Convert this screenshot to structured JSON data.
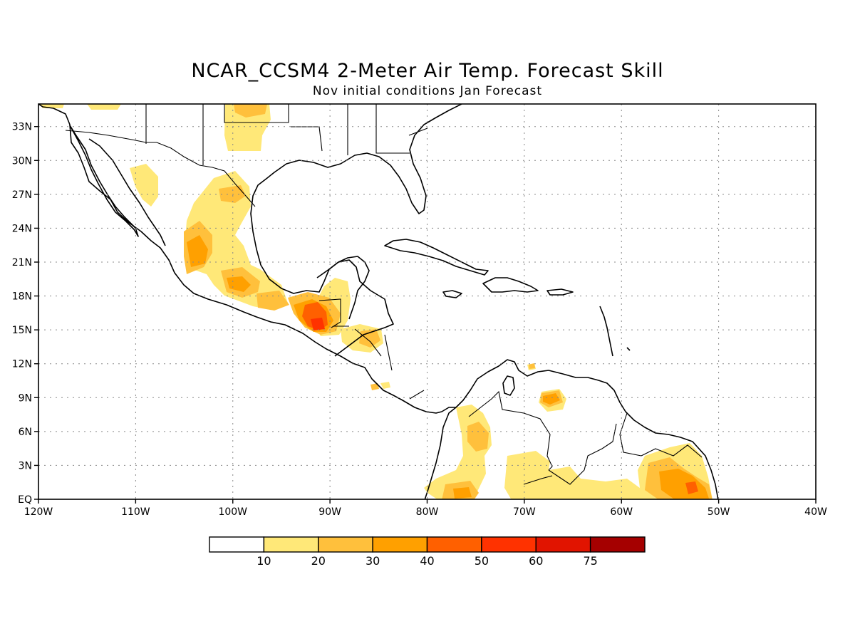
{
  "title": "NCAR_CCSM4 2-Meter Air Temp. Forecast Skill",
  "subtitle": "Nov initial conditions  Jan Forecast",
  "map": {
    "lon_range": [
      -120,
      -40
    ],
    "lat_range": [
      0,
      35
    ],
    "grid": "dotted",
    "lat_tick_labels": [
      "EQ",
      "3N",
      "6N",
      "9N",
      "12N",
      "15N",
      "18N",
      "21N",
      "24N",
      "27N",
      "30N",
      "33N"
    ],
    "lon_tick_labels": [
      "120W",
      "110W",
      "100W",
      "90W",
      "80W",
      "70W",
      "60W",
      "50W",
      "40W"
    ]
  },
  "colorbar": {
    "labels": [
      "10",
      "20",
      "30",
      "40",
      "50",
      "60",
      "75"
    ],
    "colors": [
      "#ffffff",
      "#ffe878",
      "#ffc03c",
      "#ffa000",
      "#ff6000",
      "#ff3200",
      "#e11400",
      "#a50000"
    ]
  }
}
